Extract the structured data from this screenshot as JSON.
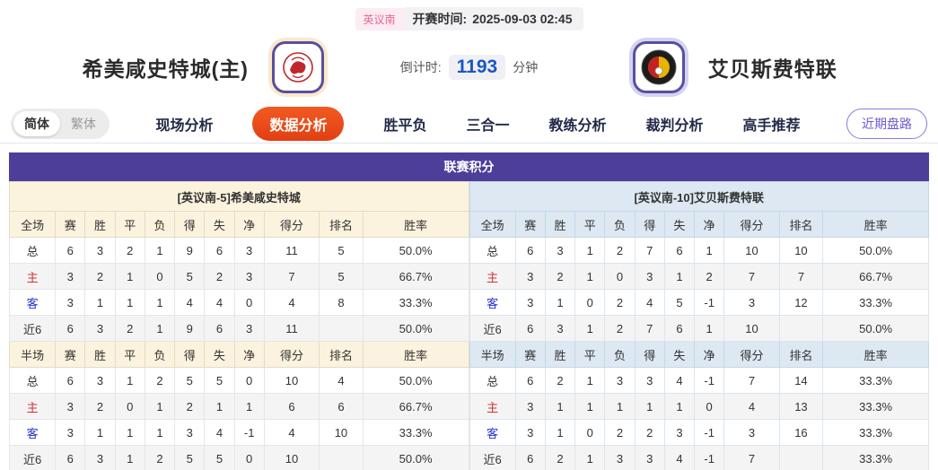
{
  "top": {
    "league_badge": "英议南",
    "kickoff_label": "开赛时间:",
    "kickoff_time": "2025-09-03 02:45"
  },
  "match": {
    "home_team": "希美咸史特城(主)",
    "away_team": "艾贝斯费特联",
    "countdown_label": "倒计时:",
    "countdown_value": "1193",
    "countdown_unit": "分钟"
  },
  "nav": {
    "lang_options": [
      {
        "label": "简体",
        "active": true
      },
      {
        "label": "繁体",
        "active": false
      }
    ],
    "tabs": [
      {
        "label": "现场分析",
        "active": false
      },
      {
        "label": "数据分析",
        "active": true
      },
      {
        "label": "胜平负",
        "active": false
      },
      {
        "label": "三合一",
        "active": false
      },
      {
        "label": "教练分析",
        "active": false
      },
      {
        "label": "裁判分析",
        "active": false
      },
      {
        "label": "高手推荐",
        "active": false
      }
    ],
    "recent_button": "近期盘路"
  },
  "league_table": {
    "title": "联赛积分",
    "scopes": [
      "全场",
      "半场"
    ],
    "columns": [
      "赛",
      "胜",
      "平",
      "负",
      "得",
      "失",
      "净",
      "得分",
      "排名",
      "胜率"
    ],
    "home": {
      "team_header": "[英议南-5]希美咸史特城",
      "full": [
        {
          "label": "总",
          "cells": [
            "6",
            "3",
            "2",
            "1",
            "9",
            "6",
            "3",
            "11",
            "5",
            "50.0%"
          ]
        },
        {
          "label": "主",
          "cells": [
            "3",
            "2",
            "1",
            "0",
            "5",
            "2",
            "3",
            "7",
            "5",
            "66.7%"
          ]
        },
        {
          "label": "客",
          "cells": [
            "3",
            "1",
            "1",
            "1",
            "4",
            "4",
            "0",
            "4",
            "8",
            "33.3%"
          ]
        },
        {
          "label": "近6",
          "cells": [
            "6",
            "3",
            "2",
            "1",
            "9",
            "6",
            "3",
            "11",
            "",
            "50.0%"
          ]
        }
      ],
      "half": [
        {
          "label": "总",
          "cells": [
            "6",
            "3",
            "1",
            "2",
            "5",
            "5",
            "0",
            "10",
            "4",
            "50.0%"
          ]
        },
        {
          "label": "主",
          "cells": [
            "3",
            "2",
            "0",
            "1",
            "2",
            "1",
            "1",
            "6",
            "6",
            "66.7%"
          ]
        },
        {
          "label": "客",
          "cells": [
            "3",
            "1",
            "1",
            "1",
            "3",
            "4",
            "-1",
            "4",
            "10",
            "33.3%"
          ]
        },
        {
          "label": "近6",
          "cells": [
            "6",
            "3",
            "1",
            "2",
            "5",
            "5",
            "0",
            "10",
            "",
            "50.0%"
          ]
        }
      ]
    },
    "away": {
      "team_header": "[英议南-10]艾贝斯费特联",
      "full": [
        {
          "label": "总",
          "cells": [
            "6",
            "3",
            "1",
            "2",
            "7",
            "6",
            "1",
            "10",
            "10",
            "50.0%"
          ]
        },
        {
          "label": "主",
          "cells": [
            "3",
            "2",
            "1",
            "0",
            "3",
            "1",
            "2",
            "7",
            "7",
            "66.7%"
          ]
        },
        {
          "label": "客",
          "cells": [
            "3",
            "1",
            "0",
            "2",
            "4",
            "5",
            "-1",
            "3",
            "12",
            "33.3%"
          ]
        },
        {
          "label": "近6",
          "cells": [
            "6",
            "3",
            "1",
            "2",
            "7",
            "6",
            "1",
            "10",
            "",
            "50.0%"
          ]
        }
      ],
      "half": [
        {
          "label": "总",
          "cells": [
            "6",
            "2",
            "1",
            "3",
            "3",
            "4",
            "-1",
            "7",
            "14",
            "33.3%"
          ]
        },
        {
          "label": "主",
          "cells": [
            "3",
            "1",
            "1",
            "1",
            "1",
            "1",
            "0",
            "4",
            "13",
            "33.3%"
          ]
        },
        {
          "label": "客",
          "cells": [
            "3",
            "1",
            "0",
            "2",
            "2",
            "3",
            "-1",
            "3",
            "16",
            "33.3%"
          ]
        },
        {
          "label": "近6",
          "cells": [
            "6",
            "2",
            "1",
            "3",
            "3",
            "4",
            "-1",
            "7",
            "",
            "33.3%"
          ]
        }
      ]
    }
  },
  "colors": {
    "accent_purple": "#4c3e99",
    "active_tab_orange": "#e8431a",
    "home_header_bg": "#fcf3de",
    "away_header_bg": "#dde8f2",
    "countdown_blue": "#1a56c4",
    "badge_pink": "#e9679a",
    "home_row_red": "#d23333",
    "away_row_blue": "#2233cc"
  }
}
